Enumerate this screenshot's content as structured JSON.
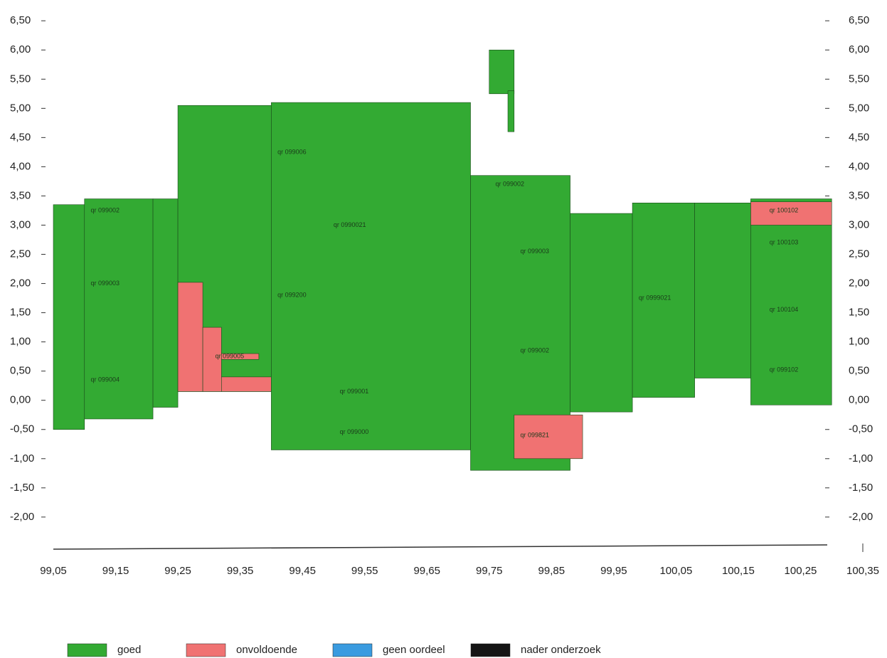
{
  "chart_data": {
    "type": "block",
    "xlim": [
      99.05,
      100.35
    ],
    "ylim": [
      -2.55,
      6.6
    ],
    "xticks": [
      {
        "value": 99.05,
        "label": "99,05"
      },
      {
        "value": 99.15,
        "label": "99,15"
      },
      {
        "value": 99.25,
        "label": "99,25"
      },
      {
        "value": 99.35,
        "label": "99,35"
      },
      {
        "value": 99.45,
        "label": "99,45"
      },
      {
        "value": 99.55,
        "label": "99,55"
      },
      {
        "value": 99.65,
        "label": "99,65"
      },
      {
        "value": 99.75,
        "label": "99,75"
      },
      {
        "value": 99.85,
        "label": "99,85"
      },
      {
        "value": 99.95,
        "label": "99,95"
      },
      {
        "value": 100.05,
        "label": "100,05"
      },
      {
        "value": 100.15,
        "label": "100,15"
      },
      {
        "value": 100.25,
        "label": "100,25"
      },
      {
        "value": 100.35,
        "label": "100,35"
      }
    ],
    "yticks": [
      {
        "value": 6.5,
        "label": "6,50"
      },
      {
        "value": 6.0,
        "label": "6,00"
      },
      {
        "value": 5.5,
        "label": "5,50"
      },
      {
        "value": 5.0,
        "label": "5,00"
      },
      {
        "value": 4.5,
        "label": "4,50"
      },
      {
        "value": 4.0,
        "label": "4,00"
      },
      {
        "value": 3.5,
        "label": "3,50"
      },
      {
        "value": 3.0,
        "label": "3,00"
      },
      {
        "value": 2.5,
        "label": "2,50"
      },
      {
        "value": 2.0,
        "label": "2,00"
      },
      {
        "value": 1.5,
        "label": "1,50"
      },
      {
        "value": 1.0,
        "label": "1,00"
      },
      {
        "value": 0.5,
        "label": "0,50"
      },
      {
        "value": 0,
        "label": "0,00"
      },
      {
        "value": -0.5,
        "label": "-0,50"
      },
      {
        "value": -1.0,
        "label": "-1,00"
      },
      {
        "value": -1.5,
        "label": "-1,50"
      },
      {
        "value": -2.0,
        "label": "-2,00"
      }
    ],
    "legend": [
      {
        "name": "goed",
        "color": "#33aa33"
      },
      {
        "name": "onvoldoende",
        "color": "#f07272"
      },
      {
        "name": "geen oordeel",
        "color": "#3a9be0"
      },
      {
        "name": "nader onderzoek",
        "color": "#151515"
      }
    ],
    "blocks": [
      {
        "x0": 99.05,
        "x1": 99.1,
        "y0": -0.5,
        "y1": 3.35,
        "status": 0
      },
      {
        "x0": 99.1,
        "x1": 99.21,
        "y0": -0.32,
        "y1": 3.45,
        "status": 0
      },
      {
        "x0": 99.21,
        "x1": 99.25,
        "y0": -0.12,
        "y1": 3.45,
        "status": 0
      },
      {
        "x0": 99.25,
        "x1": 99.4,
        "y0": 0.15,
        "y1": 5.05,
        "status": 0
      },
      {
        "x0": 99.25,
        "x1": 99.29,
        "y0": 0.15,
        "y1": 2.02,
        "status": 1
      },
      {
        "x0": 99.29,
        "x1": 99.32,
        "y0": 0.15,
        "y1": 1.25,
        "status": 1
      },
      {
        "x0": 99.32,
        "x1": 99.4,
        "y0": 0.15,
        "y1": 0.4,
        "status": 1
      },
      {
        "x0": 99.32,
        "x1": 99.38,
        "y0": 0.7,
        "y1": 0.8,
        "status": 1
      },
      {
        "x0": 99.4,
        "x1": 99.72,
        "y0": -0.85,
        "y1": 5.1,
        "status": 0
      },
      {
        "x0": 99.72,
        "x1": 99.88,
        "y0": -1.2,
        "y1": 3.85,
        "status": 0
      },
      {
        "x0": 99.79,
        "x1": 99.9,
        "y0": -1.0,
        "y1": -0.25,
        "status": 1
      },
      {
        "x0": 99.75,
        "x1": 99.79,
        "y0": 5.25,
        "y1": 6.0,
        "status": 0
      },
      {
        "x0": 99.78,
        "x1": 99.79,
        "y0": 4.6,
        "y1": 5.3,
        "status": 0
      },
      {
        "x0": 99.88,
        "x1": 99.98,
        "y0": -0.2,
        "y1": 3.2,
        "status": 0
      },
      {
        "x0": 99.98,
        "x1": 100.08,
        "y0": 0.05,
        "y1": 3.38,
        "status": 0
      },
      {
        "x0": 100.08,
        "x1": 100.17,
        "y0": 0.38,
        "y1": 3.38,
        "status": 0
      },
      {
        "x0": 100.17,
        "x1": 100.3,
        "y0": -0.08,
        "y1": 3.45,
        "status": 0
      },
      {
        "x0": 100.17,
        "x1": 100.3,
        "y0": 3.0,
        "y1": 3.4,
        "status": 1
      }
    ],
    "annotations": [
      {
        "text": "qr 099002",
        "x": 99.11,
        "y": 3.25
      },
      {
        "text": "qr 099003",
        "x": 99.11,
        "y": 2.0
      },
      {
        "text": "qr 099004",
        "x": 99.11,
        "y": 0.35
      },
      {
        "text": "qr 099005",
        "x": 99.31,
        "y": 0.75
      },
      {
        "text": "qr 099006",
        "x": 99.41,
        "y": 4.25
      },
      {
        "text": "qr 099200",
        "x": 99.41,
        "y": 1.8
      },
      {
        "text": "qr 0990021",
        "x": 99.5,
        "y": 3.0
      },
      {
        "text": "qr 099001",
        "x": 99.51,
        "y": 0.15
      },
      {
        "text": "qr 099000",
        "x": 99.51,
        "y": -0.55
      },
      {
        "text": "qr 099002",
        "x": 99.76,
        "y": 3.7
      },
      {
        "text": "qr 099003",
        "x": 99.8,
        "y": 2.55
      },
      {
        "text": "qr 099002",
        "x": 99.8,
        "y": 0.85
      },
      {
        "text": "qr 099821",
        "x": 99.8,
        "y": -0.6
      },
      {
        "text": "qr 0999021",
        "x": 99.99,
        "y": 1.75
      },
      {
        "text": "qr 100102",
        "x": 100.2,
        "y": 3.25
      },
      {
        "text": "qr 100103",
        "x": 100.2,
        "y": 2.7
      },
      {
        "text": "qr 100104",
        "x": 100.2,
        "y": 1.55
      },
      {
        "text": "qr 099102",
        "x": 100.2,
        "y": 0.52
      }
    ]
  }
}
